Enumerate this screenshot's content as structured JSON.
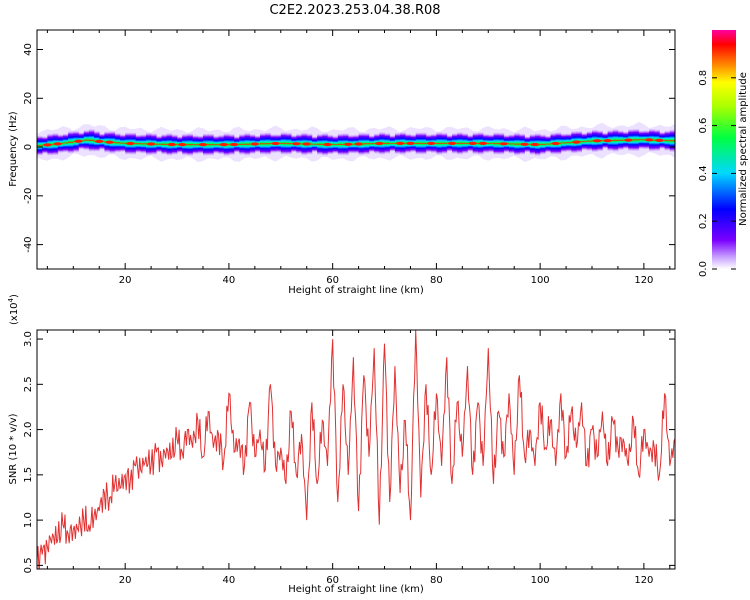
{
  "figure": {
    "title": "C2E2.2023.253.04.38.R08"
  },
  "chart_data": [
    {
      "type": "heatmap",
      "title": "",
      "xlabel": "Height of straight line (km)",
      "ylabel": "Frequency (Hz)",
      "xlim": [
        3,
        126
      ],
      "ylim": [
        -50,
        48
      ],
      "x_ticks": [
        20,
        40,
        60,
        80,
        100,
        120
      ],
      "y_ticks": [
        -40,
        -20,
        0,
        20,
        40
      ],
      "colorbar": {
        "label": "Normalized spectral amplitude",
        "range": [
          0.0,
          1.0
        ],
        "ticks": [
          0.0,
          0.2,
          0.4,
          0.6,
          0.8
        ],
        "colormap": "rainbow (white-violet-blue-cyan-green-yellow-red-magenta)"
      },
      "band": {
        "center_hz": [
          [
            3,
            0.5
          ],
          [
            8,
            1.5
          ],
          [
            13,
            3.0
          ],
          [
            14,
            2.5
          ],
          [
            20,
            1.5
          ],
          [
            30,
            1.0
          ],
          [
            40,
            1.0
          ],
          [
            50,
            1.5
          ],
          [
            60,
            1.0
          ],
          [
            70,
            1.5
          ],
          [
            80,
            1.5
          ],
          [
            90,
            1.5
          ],
          [
            100,
            1.0
          ],
          [
            110,
            2.5
          ],
          [
            120,
            3.0
          ],
          [
            126,
            2.5
          ]
        ],
        "halfwidth_hz": 4,
        "peak_amplitude": 0.95
      }
    },
    {
      "type": "line",
      "title": "",
      "xlabel": "Height of straight line (km)",
      "ylabel": "SNR (10 * v/v)",
      "y_scale_label": "(x10",
      "y_scale_exp": "4",
      "y_scale_close": ")",
      "xlim": [
        3,
        126
      ],
      "ylim": [
        0.46,
        3.1
      ],
      "x_ticks": [
        20,
        40,
        60,
        80,
        100,
        120
      ],
      "y_ticks": [
        "0.5",
        "1.0",
        "1.5",
        "2.0",
        "2.5",
        "3.0"
      ],
      "series": [
        {
          "color": "#e03030",
          "x": [
            3,
            4,
            5,
            6,
            7,
            8,
            9,
            10,
            11,
            12,
            13,
            14,
            15,
            16,
            17,
            18,
            19,
            20,
            21,
            22,
            23,
            24,
            25,
            26,
            27,
            28,
            29,
            30,
            31,
            32,
            33,
            34,
            35,
            36,
            37,
            38,
            39,
            40,
            41,
            42,
            43,
            44,
            45,
            46,
            47,
            48,
            49,
            50,
            51,
            52,
            53,
            54,
            55,
            56,
            57,
            58,
            59,
            60,
            61,
            62,
            63,
            64,
            65,
            66,
            67,
            68,
            69,
            70,
            71,
            72,
            73,
            74,
            75,
            76,
            77,
            78,
            79,
            80,
            81,
            82,
            83,
            84,
            85,
            86,
            87,
            88,
            89,
            90,
            91,
            92,
            93,
            94,
            95,
            96,
            97,
            98,
            99,
            100,
            101,
            102,
            103,
            104,
            105,
            106,
            107,
            108,
            109,
            110,
            111,
            112,
            113,
            114,
            115,
            116,
            117,
            118,
            119,
            120,
            121,
            122,
            123,
            124,
            125,
            126
          ],
          "y": [
            0.55,
            0.62,
            0.7,
            0.85,
            0.78,
            0.95,
            0.85,
            0.9,
            0.88,
            1.0,
            0.95,
            1.05,
            1.1,
            1.3,
            1.25,
            1.4,
            1.35,
            1.5,
            1.45,
            1.6,
            1.55,
            1.7,
            1.6,
            1.75,
            1.65,
            1.8,
            1.7,
            1.9,
            1.75,
            2.0,
            1.8,
            2.1,
            1.7,
            2.2,
            1.8,
            1.95,
            1.65,
            2.4,
            1.75,
            1.9,
            1.6,
            2.3,
            1.7,
            2.0,
            1.55,
            2.5,
            1.6,
            1.8,
            1.4,
            2.2,
            1.5,
            1.95,
            1.0,
            2.3,
            1.4,
            2.1,
            1.6,
            3.0,
            1.2,
            2.5,
            1.5,
            2.8,
            1.1,
            2.6,
            1.7,
            2.9,
            0.95,
            2.95,
            1.2,
            2.7,
            1.3,
            2.1,
            1.0,
            3.1,
            1.25,
            2.5,
            1.5,
            2.4,
            1.6,
            2.8,
            1.4,
            2.3,
            1.7,
            2.7,
            1.5,
            2.3,
            1.6,
            2.9,
            1.4,
            2.2,
            1.7,
            2.4,
            1.5,
            2.6,
            1.7,
            2.0,
            1.6,
            2.3,
            1.8,
            2.1,
            1.6,
            2.4,
            1.7,
            2.2,
            1.8,
            2.3,
            1.6,
            2.0,
            1.7,
            2.2,
            1.6,
            2.1,
            1.8,
            1.9,
            1.6,
            2.1,
            1.5,
            2.0,
            1.7,
            1.8,
            1.5,
            2.4,
            1.6,
            1.9
          ]
        }
      ]
    }
  ]
}
